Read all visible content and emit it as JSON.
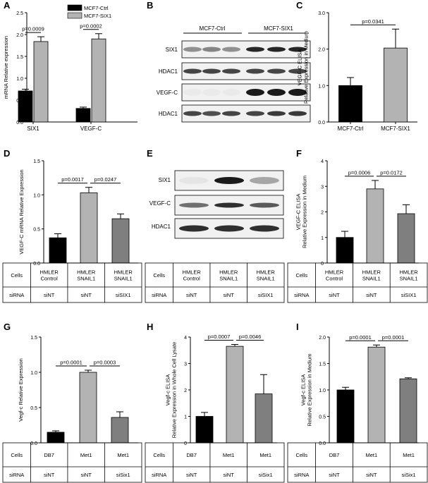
{
  "panel_letters": [
    "A",
    "B",
    "C",
    "D",
    "E",
    "F",
    "G",
    "H",
    "I"
  ],
  "blot_B": {
    "groups": [
      "MCF7-Ctrl",
      "MCF7-SIX1"
    ],
    "rows": [
      "SIX1",
      "HDAC1",
      "VEGF-C",
      "HDAC1"
    ]
  },
  "blot_E": {
    "rows": [
      "SIX1",
      "VEGF-C",
      "HDAC1"
    ]
  },
  "table_cells_label": "Cells",
  "table_sirna_label": "siRNA",
  "tables": {
    "D": {
      "cells": [
        "HMLER\nControl",
        "HMLER\nSNAIL1",
        "HMLER\nSNAIL1"
      ],
      "sirna": [
        "siNT",
        "siNT",
        "siSIX1"
      ]
    },
    "E": {
      "cells": [
        "HMLER\nControl",
        "HMLER\nSNAIL1",
        "HMLER\nSNAIL1"
      ],
      "sirna": [
        "siNT",
        "siNT",
        "siSIX1"
      ]
    },
    "F": {
      "cells": [
        "HMLER\nControl",
        "HMLER\nSNAIL1",
        "HMLER\nSNAIL1"
      ],
      "sirna": [
        "siNT",
        "siNT",
        "siSIX1"
      ]
    },
    "G": {
      "cells": [
        "DB7",
        "Met1",
        "Met1"
      ],
      "sirna": [
        "siNT",
        "siNT",
        "siSix1"
      ]
    },
    "H": {
      "cells": [
        "DB7",
        "Met1",
        "Met1"
      ],
      "sirna": [
        "siNT",
        "siNT",
        "siSix1"
      ]
    },
    "I": {
      "cells": [
        "DB7",
        "Met1",
        "Met1"
      ],
      "sirna": [
        "siNT",
        "siNT",
        "siSix1"
      ]
    }
  },
  "colors": {
    "black": "#000000",
    "light_gray": "#b3b3b3",
    "mid_gray": "#7f7f7f",
    "blot_bg": "#f1f1f1",
    "band": "#1a1a1a"
  },
  "chart_data": [
    {
      "panel": "A",
      "type": "bar",
      "categories": [
        "SIX1",
        "VEGF-C"
      ],
      "series": [
        {
          "name": "MCF7-Ctrl",
          "values": [
            0.71,
            0.31
          ],
          "errors": [
            0.04,
            0.03
          ]
        },
        {
          "name": "MCF7-SIX1",
          "values": [
            1.84,
            1.9
          ],
          "errors": [
            0.11,
            0.12
          ]
        }
      ],
      "ylabel": "mRNA Relative expression",
      "ylim": [
        0,
        2.5
      ],
      "yticks": [
        0.0,
        0.5,
        1.0,
        1.5,
        2.0,
        2.5
      ],
      "annotations": [
        "p=0.0009",
        "p=0.0002"
      ],
      "legend": "top-right"
    },
    {
      "panel": "C",
      "type": "bar",
      "categories": [
        "MCF7-Ctrl",
        "MCF7-SIX1"
      ],
      "values": [
        1.0,
        2.03
      ],
      "errors": [
        0.22,
        0.52
      ],
      "ylabel": "VEGF-C ELISA\nRelative Expression in Medium",
      "ylim": [
        0,
        3.0
      ],
      "yticks": [
        0.0,
        1.0,
        2.0,
        3.0
      ],
      "annotations": [
        "p=0.0341"
      ]
    },
    {
      "panel": "D",
      "type": "bar",
      "categories": [
        "HMLER Control siNT",
        "HMLER SNAIL1 siNT",
        "HMLER SNAIL1 siSIX1"
      ],
      "values": [
        0.37,
        1.03,
        0.65
      ],
      "errors": [
        0.06,
        0.08,
        0.07
      ],
      "ylabel": "VEGF-C mRNA Relative Expression",
      "ylim": [
        0,
        1.5
      ],
      "yticks": [
        0.0,
        0.5,
        1.0,
        1.5
      ],
      "annotations": [
        "p=0.0017",
        "p=0.0247"
      ]
    },
    {
      "panel": "F",
      "type": "bar",
      "categories": [
        "HMLER Control siNT",
        "HMLER SNAIL1 siNT",
        "HMLER SNAIL1 siSIX1"
      ],
      "values": [
        1.0,
        2.9,
        1.93
      ],
      "errors": [
        0.24,
        0.33,
        0.35
      ],
      "ylabel": "VEGF-C ELISA\nRelative Expression in Medium",
      "ylim": [
        0,
        4
      ],
      "yticks": [
        0,
        1,
        2,
        3,
        4
      ],
      "annotations": [
        "p=0.0006",
        "p=0.0172"
      ]
    },
    {
      "panel": "G",
      "type": "bar",
      "categories": [
        "DB7 siNT",
        "Met1 siNT",
        "Met1 siSix1"
      ],
      "values": [
        0.15,
        1.0,
        0.36
      ],
      "errors": [
        0.02,
        0.03,
        0.08
      ],
      "ylabel": "Vegf-c Relative Expression",
      "ylim": [
        0,
        1.5
      ],
      "yticks": [
        0.0,
        0.5,
        1.0,
        1.5
      ],
      "annotations": [
        "p=0.0001",
        "p=0.0003"
      ]
    },
    {
      "panel": "H",
      "type": "bar",
      "categories": [
        "DB7 siNT",
        "Met1 siNT",
        "Met1 siSix1"
      ],
      "values": [
        1.0,
        3.65,
        1.85
      ],
      "errors": [
        0.15,
        0.07,
        0.73
      ],
      "ylabel": "Vegf-c ELISA\nRelative Expression in Whole Cell Lysate",
      "ylim": [
        0,
        4
      ],
      "yticks": [
        0,
        1,
        2,
        3,
        4
      ],
      "annotations": [
        "p=0.0007",
        "p=0.0046"
      ]
    },
    {
      "panel": "I",
      "type": "bar",
      "categories": [
        "DB7 siNT",
        "Met1 siNT",
        "Met1 siSix1"
      ],
      "values": [
        1.0,
        1.81,
        1.21
      ],
      "errors": [
        0.05,
        0.04,
        0.02
      ],
      "ylabel": "Vegf-c ELISA\nRelative Expression in Medium",
      "ylim": [
        0,
        2.0
      ],
      "yticks": [
        0.0,
        0.5,
        1.0,
        1.5,
        2.0
      ],
      "annotations": [
        "p=0.0001",
        "p=0.0001"
      ]
    }
  ]
}
